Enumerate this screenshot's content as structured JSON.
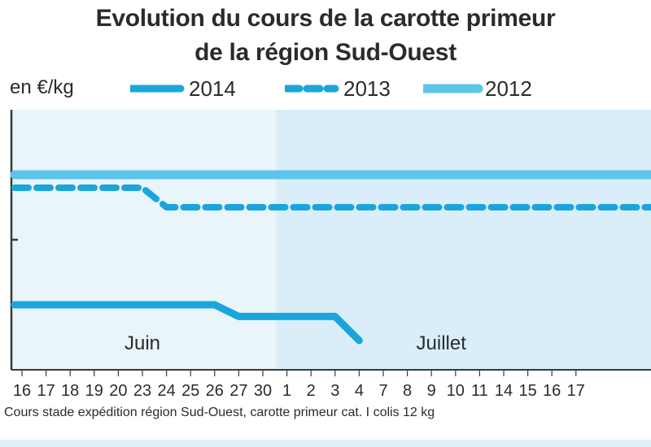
{
  "title_line1": "Evolution du cours de la carotte primeur",
  "title_line2": "de la région Sud-Ouest",
  "unit_label": "en €/kg",
  "source_note": "Cours stade expédition région Sud-Ouest, carotte primeur cat. I colis 12 kg",
  "colors": {
    "s2014": "#1aa6dc",
    "s2013": "#1aa6dc",
    "s2012": "#5ec5ea",
    "panel_juin": "#e9f5fb",
    "panel_juillet": "#d9eef9",
    "axis": "#3a3a3a",
    "text": "#2b2b2b"
  },
  "chart_data": {
    "type": "line",
    "title": "Evolution du cours de la carotte primeur de la région Sud-Ouest",
    "ylabel": "en €/kg",
    "y_tick_labels_shown": false,
    "ylim": [
      0,
      4
    ],
    "y_ticks": [
      1,
      2,
      3
    ],
    "x": [
      "16",
      "17",
      "18",
      "19",
      "20",
      "23",
      "24",
      "25",
      "26",
      "27",
      "30",
      "1",
      "2",
      "3",
      "4",
      "7",
      "8",
      "9",
      "10",
      "11",
      "14",
      "15",
      "16",
      "17"
    ],
    "month_labels": [
      {
        "label": "Juin",
        "from": "16",
        "to": "30"
      },
      {
        "label": "Juillet",
        "from": "1",
        "to": "17"
      }
    ],
    "series": [
      {
        "name": "2014",
        "style": "solid",
        "values": [
          1.0,
          1.0,
          1.0,
          1.0,
          1.0,
          1.0,
          1.0,
          1.0,
          1.0,
          0.82,
          0.82,
          0.82,
          0.82,
          0.82,
          0.45,
          null,
          null,
          null,
          null,
          null,
          null,
          null,
          null,
          null
        ]
      },
      {
        "name": "2013",
        "style": "dashed",
        "values": [
          2.8,
          2.8,
          2.8,
          2.8,
          2.8,
          2.8,
          2.5,
          2.5,
          2.5,
          2.5,
          2.5,
          2.5,
          2.5,
          2.5,
          2.5,
          2.5,
          2.5,
          2.5,
          2.5,
          2.5,
          2.5,
          2.5,
          2.5,
          2.5
        ]
      },
      {
        "name": "2012",
        "style": "solid-light",
        "values": [
          3.0,
          3.0,
          3.0,
          3.0,
          3.0,
          3.0,
          3.0,
          3.0,
          3.0,
          3.0,
          3.0,
          3.0,
          3.0,
          3.0,
          3.0,
          3.0,
          3.0,
          3.0,
          3.0,
          3.0,
          3.0,
          3.0,
          3.0,
          3.0
        ]
      }
    ],
    "legend_position": "top"
  }
}
